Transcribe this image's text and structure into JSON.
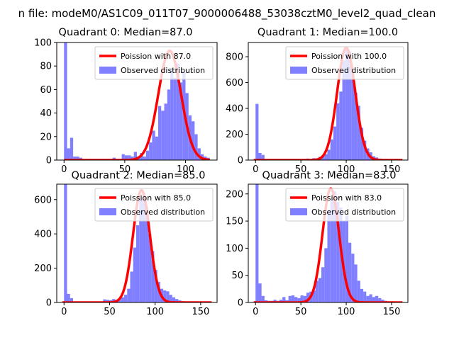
{
  "figure": {
    "suptitle": "n file: modeM0/AS1C09_011T07_9000006488_53038cztM0_level2_quad_clean",
    "bar_color": "#7f7fff",
    "curve_color": "#ff0000"
  },
  "chart_data": [
    {
      "type": "bar",
      "title": "Quadrant 0: Median=87.0",
      "median": 87.0,
      "legend": [
        "Poission with 87.0",
        "Observed distribution"
      ],
      "legend_position": "top-right",
      "xlim": [
        -6,
        126
      ],
      "ylim": [
        0,
        100
      ],
      "xticks": [
        0,
        50,
        100
      ],
      "xtick_labels": [
        "0",
        "50",
        "100"
      ],
      "yticks": [
        0,
        20,
        40,
        60,
        80,
        100
      ],
      "ytick_labels": [
        "0",
        "20",
        "40",
        "60",
        "80",
        "100"
      ],
      "bin_width": 2.5,
      "bins": [
        [
          0,
          100
        ],
        [
          2.5,
          10
        ],
        [
          5,
          19
        ],
        [
          7.5,
          3
        ],
        [
          10,
          3
        ],
        [
          12.5,
          2
        ],
        [
          15,
          1
        ],
        [
          17.5,
          1
        ],
        [
          20,
          1
        ],
        [
          22.5,
          1
        ],
        [
          25,
          1
        ],
        [
          27.5,
          1
        ],
        [
          30,
          1
        ],
        [
          32.5,
          1
        ],
        [
          35,
          1
        ],
        [
          37.5,
          1
        ],
        [
          40,
          2
        ],
        [
          42.5,
          1
        ],
        [
          45,
          1
        ],
        [
          47.5,
          5
        ],
        [
          50,
          4
        ],
        [
          52.5,
          4
        ],
        [
          55,
          3
        ],
        [
          57.5,
          7
        ],
        [
          60,
          3
        ],
        [
          62.5,
          6
        ],
        [
          65,
          3
        ],
        [
          67.5,
          8
        ],
        [
          70,
          15
        ],
        [
          72.5,
          25
        ],
        [
          75,
          20
        ],
        [
          77.5,
          46
        ],
        [
          80,
          42
        ],
        [
          82.5,
          48
        ],
        [
          85,
          60
        ],
        [
          87.5,
          78
        ],
        [
          90,
          70
        ],
        [
          92.5,
          82
        ],
        [
          95,
          66
        ],
        [
          97.5,
          75
        ],
        [
          100,
          57
        ],
        [
          102.5,
          38
        ],
        [
          105,
          33
        ],
        [
          107.5,
          22
        ],
        [
          110,
          10
        ],
        [
          112.5,
          5
        ],
        [
          115,
          3
        ],
        [
          117.5,
          2
        ]
      ],
      "poisson_lambda": 87.0,
      "poisson_peak": 93
    },
    {
      "type": "bar",
      "title": "Quadrant 1: Median=100.0",
      "median": 100.0,
      "legend": [
        "Poission with 100.0",
        "Observed distribution"
      ],
      "legend_position": "top-right",
      "xlim": [
        -8,
        168
      ],
      "ylim": [
        0,
        910
      ],
      "xticks": [
        0,
        50,
        100,
        150
      ],
      "xtick_labels": [
        "0",
        "50",
        "100",
        "150"
      ],
      "yticks": [
        0,
        200,
        400,
        600,
        800
      ],
      "ytick_labels": [
        "0",
        "200",
        "400",
        "600",
        "800"
      ],
      "bin_width": 3.3,
      "bins": [
        [
          0,
          435
        ],
        [
          3.3,
          55
        ],
        [
          6.6,
          40
        ],
        [
          9.9,
          8
        ],
        [
          13.2,
          5
        ],
        [
          16.5,
          5
        ],
        [
          19.8,
          4
        ],
        [
          23.1,
          4
        ],
        [
          26.4,
          4
        ],
        [
          29.7,
          4
        ],
        [
          33,
          4
        ],
        [
          36.3,
          4
        ],
        [
          39.6,
          4
        ],
        [
          42.9,
          4
        ],
        [
          46.2,
          6
        ],
        [
          49.5,
          6
        ],
        [
          52.8,
          5
        ],
        [
          56.1,
          12
        ],
        [
          59.4,
          8
        ],
        [
          62.7,
          15
        ],
        [
          66,
          10
        ],
        [
          69.3,
          25
        ],
        [
          72.6,
          30
        ],
        [
          75.9,
          45
        ],
        [
          79.2,
          80
        ],
        [
          82.5,
          160
        ],
        [
          85.8,
          260
        ],
        [
          89.1,
          440
        ],
        [
          92.4,
          530
        ],
        [
          95.7,
          770
        ],
        [
          99,
          860
        ],
        [
          102.3,
          840
        ],
        [
          105.6,
          670
        ],
        [
          108.9,
          520
        ],
        [
          112.2,
          420
        ],
        [
          115.5,
          250
        ],
        [
          118.8,
          150
        ],
        [
          122.1,
          90
        ],
        [
          125.4,
          60
        ],
        [
          128.7,
          30
        ],
        [
          132,
          20
        ],
        [
          135.3,
          12
        ],
        [
          138.6,
          8
        ],
        [
          141.9,
          6
        ],
        [
          145.2,
          5
        ],
        [
          148.5,
          4
        ],
        [
          151.8,
          3
        ],
        [
          155.1,
          2
        ]
      ],
      "poisson_lambda": 100.0,
      "poisson_peak": 870
    },
    {
      "type": "bar",
      "title": "Quadrant 2: Median=85.0",
      "median": 85.0,
      "legend": [
        "Poission with 85.0",
        "Observed distribution"
      ],
      "legend_position": "top-right",
      "xlim": [
        -8,
        168
      ],
      "ylim": [
        0,
        690
      ],
      "xticks": [
        0,
        50,
        100,
        150
      ],
      "xtick_labels": [
        "0",
        "50",
        "100",
        "150"
      ],
      "yticks": [
        0,
        200,
        400,
        600
      ],
      "ytick_labels": [
        "0",
        "200",
        "400",
        "600"
      ],
      "bin_width": 3.3,
      "bins": [
        [
          0,
          690
        ],
        [
          3.3,
          50
        ],
        [
          6.6,
          25
        ],
        [
          9.9,
          5
        ],
        [
          13.2,
          3
        ],
        [
          16.5,
          2
        ],
        [
          19.8,
          2
        ],
        [
          23.1,
          2
        ],
        [
          26.4,
          2
        ],
        [
          29.7,
          2
        ],
        [
          33,
          3
        ],
        [
          36.3,
          3
        ],
        [
          39.6,
          3
        ],
        [
          42.9,
          18
        ],
        [
          46.2,
          15
        ],
        [
          49.5,
          13
        ],
        [
          52.8,
          20
        ],
        [
          56.1,
          15
        ],
        [
          59.4,
          22
        ],
        [
          62.7,
          30
        ],
        [
          66,
          45
        ],
        [
          69.3,
          80
        ],
        [
          72.6,
          180
        ],
        [
          75.9,
          320
        ],
        [
          79.2,
          450
        ],
        [
          82.5,
          600
        ],
        [
          85.8,
          640
        ],
        [
          89.1,
          560
        ],
        [
          92.4,
          400
        ],
        [
          95.7,
          300
        ],
        [
          99,
          190
        ],
        [
          102.3,
          120
        ],
        [
          105.6,
          80
        ],
        [
          108.9,
          70
        ],
        [
          112.2,
          65
        ],
        [
          115.5,
          45
        ],
        [
          118.8,
          30
        ],
        [
          122.1,
          20
        ],
        [
          125.4,
          12
        ],
        [
          128.7,
          8
        ],
        [
          132,
          5
        ],
        [
          135.3,
          3
        ],
        [
          138.6,
          2
        ],
        [
          141.9,
          2
        ],
        [
          145.2,
          1
        ]
      ],
      "poisson_lambda": 85.0,
      "poisson_peak": 655
    },
    {
      "type": "bar",
      "title": "Quadrant 3: Median=83.0",
      "median": 83.0,
      "legend": [
        "Poission with 83.0",
        "Observed distribution"
      ],
      "legend_position": "top-right",
      "xlim": [
        -8,
        168
      ],
      "ylim": [
        0,
        218
      ],
      "xticks": [
        0,
        50,
        100,
        150
      ],
      "xtick_labels": [
        "0",
        "50",
        "100",
        "150"
      ],
      "yticks": [
        0,
        50,
        100,
        150,
        200
      ],
      "ytick_labels": [
        "0",
        "50",
        "100",
        "150",
        "200"
      ],
      "bin_width": 3.3,
      "bins": [
        [
          0,
          218
        ],
        [
          3.3,
          35
        ],
        [
          6.6,
          12
        ],
        [
          9.9,
          4
        ],
        [
          13.2,
          3
        ],
        [
          16.5,
          3
        ],
        [
          19.8,
          5
        ],
        [
          23.1,
          3
        ],
        [
          26.4,
          5
        ],
        [
          29.7,
          10
        ],
        [
          33,
          4
        ],
        [
          36.3,
          12
        ],
        [
          39.6,
          13
        ],
        [
          42.9,
          10
        ],
        [
          46.2,
          8
        ],
        [
          49.5,
          13
        ],
        [
          52.8,
          12
        ],
        [
          56.1,
          18
        ],
        [
          59.4,
          20
        ],
        [
          62.7,
          22
        ],
        [
          66,
          40
        ],
        [
          69.3,
          45
        ],
        [
          72.6,
          65
        ],
        [
          75.9,
          100
        ],
        [
          79.2,
          170
        ],
        [
          82.5,
          190
        ],
        [
          85.8,
          205
        ],
        [
          89.1,
          185
        ],
        [
          92.4,
          175
        ],
        [
          95.7,
          150
        ],
        [
          99,
          160
        ],
        [
          102.3,
          110
        ],
        [
          105.6,
          90
        ],
        [
          108.9,
          70
        ],
        [
          112.2,
          40
        ],
        [
          115.5,
          25
        ],
        [
          118.8,
          20
        ],
        [
          122.1,
          12
        ],
        [
          125.4,
          15
        ],
        [
          128.7,
          10
        ],
        [
          132,
          12
        ],
        [
          135.3,
          8
        ],
        [
          138.6,
          5
        ],
        [
          141.9,
          3
        ],
        [
          145.2,
          2
        ],
        [
          148.5,
          1
        ]
      ],
      "poisson_lambda": 83.0,
      "poisson_peak": 210
    }
  ]
}
